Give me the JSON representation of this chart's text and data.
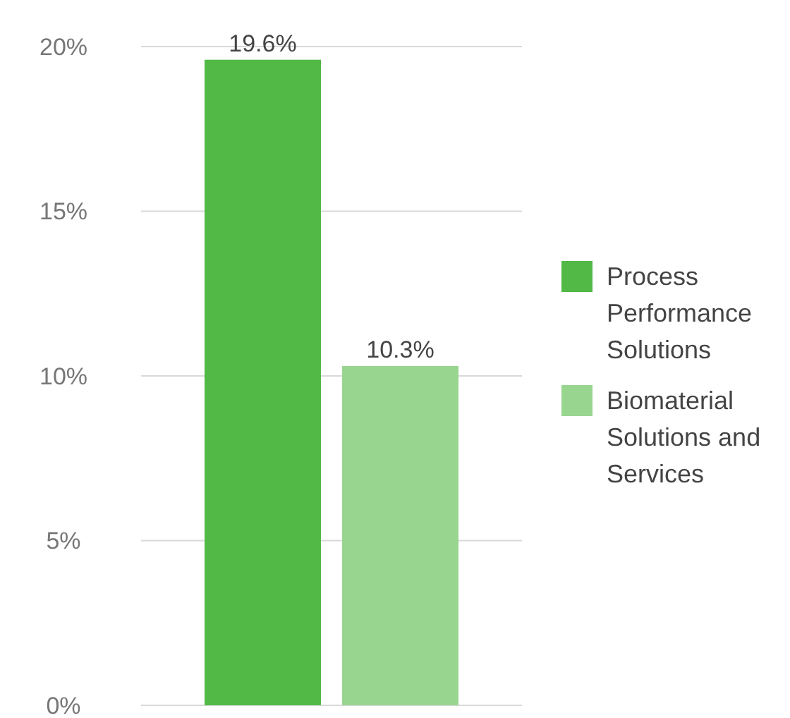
{
  "chart_data": {
    "type": "bar",
    "categories": [
      null
    ],
    "series": [
      {
        "name": "Process Performance Solutions",
        "color": "#52b947",
        "values": [
          19.6
        ],
        "value_labels": [
          "19.6%"
        ]
      },
      {
        "name": "Biomaterial Solutions and Services",
        "color": "#98d58f",
        "values": [
          10.3
        ],
        "value_labels": [
          "10.3%"
        ]
      }
    ],
    "ylim": [
      0,
      20
    ],
    "yticks": [
      {
        "value": 0,
        "label": "0%"
      },
      {
        "value": 5,
        "label": "5%"
      },
      {
        "value": 10,
        "label": "10%"
      },
      {
        "value": 15,
        "label": "15%"
      },
      {
        "value": 20,
        "label": "20%"
      }
    ],
    "grid": "y",
    "legend": "right"
  }
}
